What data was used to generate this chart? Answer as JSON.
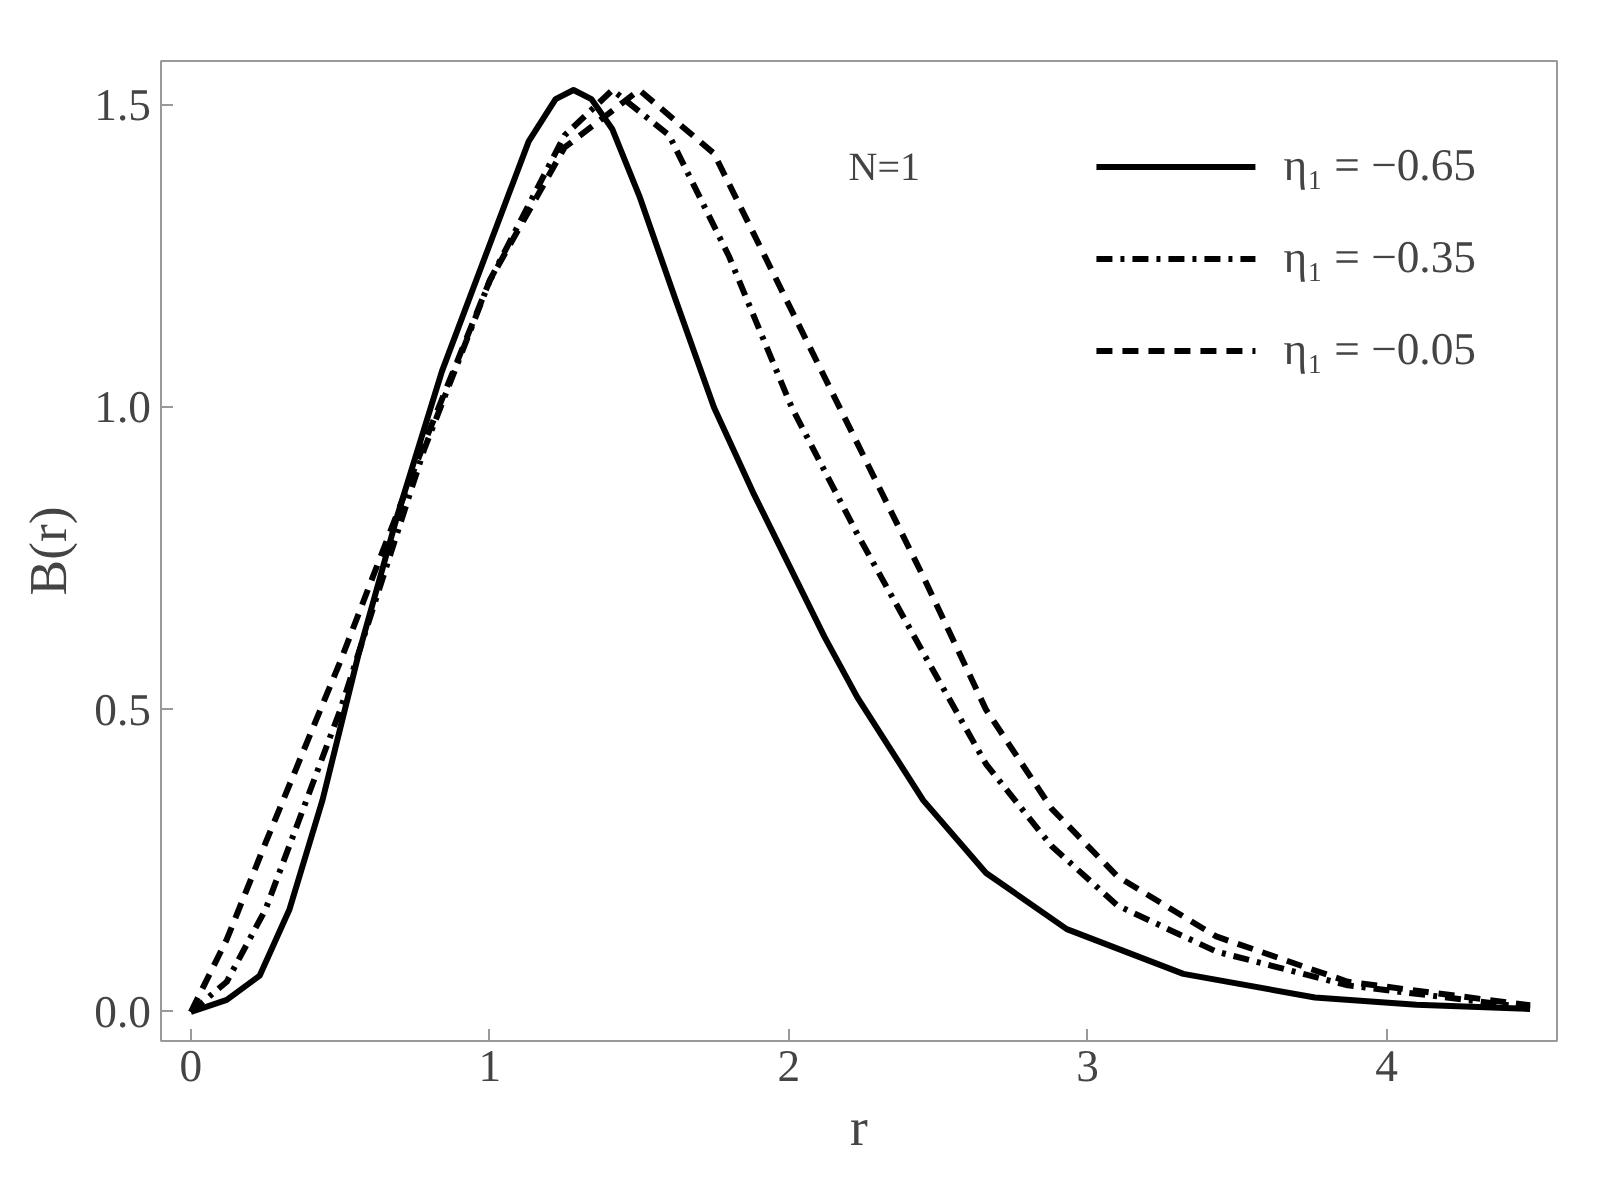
{
  "chart_data": {
    "type": "line",
    "xlabel": "r",
    "ylabel": "B(r)",
    "xlim": [
      -0.1,
      4.57
    ],
    "ylim": [
      -0.048,
      1.573
    ],
    "xticks": [
      0,
      1,
      2,
      3,
      4
    ],
    "yticks": [
      {
        "value": 0,
        "label": "0.0"
      },
      {
        "value": 0.5,
        "label": "0.5"
      },
      {
        "value": 1,
        "label": "1.0"
      },
      {
        "value": 1.5,
        "label": "1.5"
      }
    ],
    "grid": false,
    "legend": "top right",
    "annotations": [
      "N=1"
    ],
    "series": [
      {
        "name": "η₁ = −0.65",
        "color": "#000000",
        "line_style": "solid",
        "x": [
          0,
          0.12,
          0.23,
          0.33,
          0.44,
          0.56,
          0.69,
          0.84,
          1.0,
          1.13,
          1.22,
          1.28,
          1.34,
          1.41,
          1.5,
          1.62,
          1.75,
          1.88,
          2.0,
          2.12,
          2.23,
          2.45,
          2.66,
          2.93,
          3.32,
          3.76,
          4.1,
          4.48
        ],
        "values": [
          0,
          0.02,
          0.06,
          0.17,
          0.35,
          0.59,
          0.82,
          1.06,
          1.27,
          1.44,
          1.51,
          1.525,
          1.51,
          1.46,
          1.35,
          1.18,
          1.0,
          0.86,
          0.74,
          0.62,
          0.52,
          0.35,
          0.23,
          0.137,
          0.063,
          0.024,
          0.012,
          0.005
        ]
      },
      {
        "name": "η₁ = −0.35",
        "color": "#000000",
        "line_style": "dashdot",
        "x": [
          0,
          0.12,
          0.25,
          0.5,
          0.78,
          1.0,
          1.25,
          1.41,
          1.6,
          1.8,
          2.01,
          2.23,
          2.45,
          2.66,
          2.88,
          3.1,
          3.43,
          3.87,
          4.48
        ],
        "values": [
          0,
          0.05,
          0.17,
          0.5,
          0.93,
          1.21,
          1.45,
          1.525,
          1.45,
          1.25,
          1.0,
          0.79,
          0.594,
          0.41,
          0.274,
          0.176,
          0.1,
          0.044,
          0.007
        ]
      },
      {
        "name": "η₁ = −0.05",
        "color": "#000000",
        "line_style": "dashed",
        "x": [
          0,
          0.12,
          0.25,
          0.5,
          0.78,
          1.0,
          1.25,
          1.5,
          1.75,
          2.01,
          2.23,
          2.45,
          2.66,
          2.88,
          3.1,
          3.43,
          3.87,
          4.48
        ],
        "values": [
          0,
          0.12,
          0.28,
          0.58,
          0.94,
          1.21,
          1.43,
          1.525,
          1.42,
          1.16,
          0.94,
          0.72,
          0.5,
          0.336,
          0.224,
          0.125,
          0.05,
          0.011
        ]
      }
    ]
  }
}
